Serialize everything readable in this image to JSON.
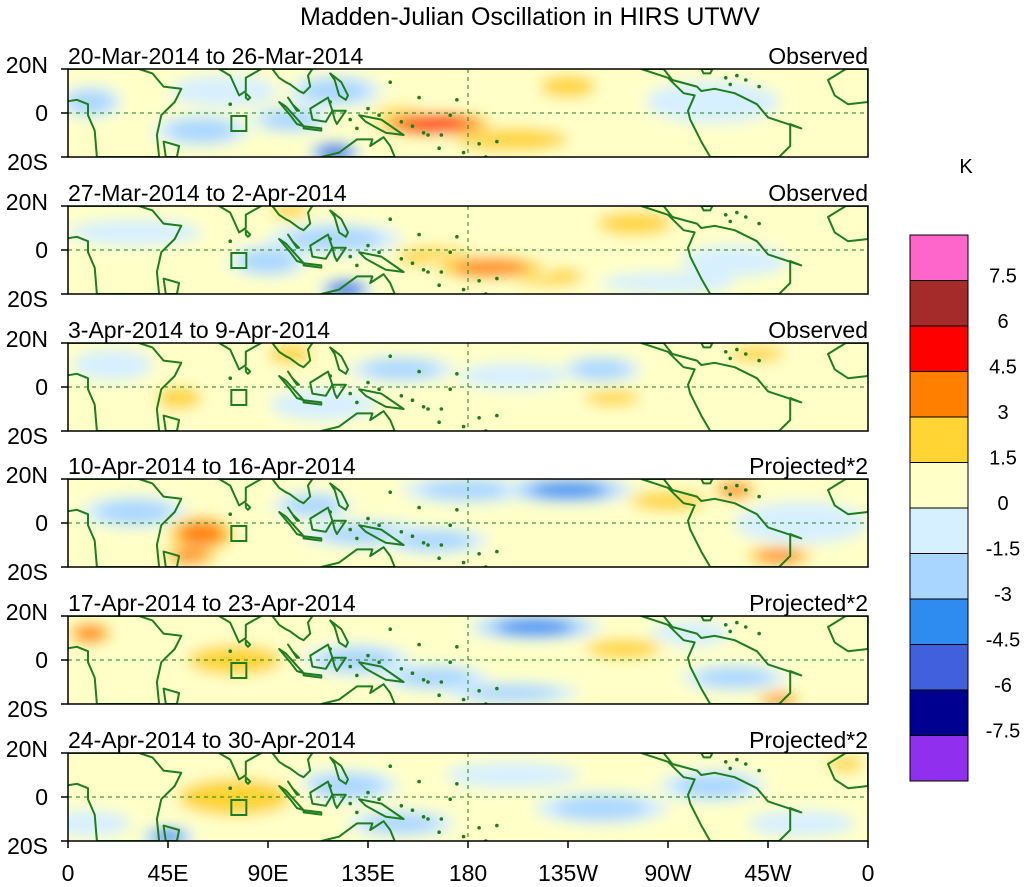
{
  "chart_data": {
    "type": "heatmap",
    "title": "Madden-Julian Oscillation in HIRS UTWV",
    "units": "K",
    "xlim": [
      0,
      360
    ],
    "ylim": [
      -20,
      20
    ],
    "x_ticks": [
      {
        "lon": 0,
        "label": "0"
      },
      {
        "lon": 45,
        "label": "45E"
      },
      {
        "lon": 90,
        "label": "90E"
      },
      {
        "lon": 135,
        "label": "135E"
      },
      {
        "lon": 180,
        "label": "180"
      },
      {
        "lon": 225,
        "label": "135W"
      },
      {
        "lon": 270,
        "label": "90W"
      },
      {
        "lon": 315,
        "label": "45W"
      },
      {
        "lon": 360,
        "label": "0"
      }
    ],
    "y_ticks": [
      {
        "lat": 20,
        "label": "20N"
      },
      {
        "lat": 0,
        "label": "0"
      },
      {
        "lat": -20,
        "label": "20S"
      }
    ],
    "panels": [
      {
        "period": "20-Mar-2014 to 26-Mar-2014",
        "kind": "Observed",
        "anomalies": [
          {
            "lon": 165,
            "lat": -5,
            "sx": 25,
            "sy": 5,
            "v": 5.5
          },
          {
            "lon": 150,
            "lat": -2,
            "sx": 15,
            "sy": 6,
            "v": 3
          },
          {
            "lon": 200,
            "lat": -12,
            "sx": 30,
            "sy": 6,
            "v": 2
          },
          {
            "lon": 225,
            "lat": 12,
            "sx": 15,
            "sy": 6,
            "v": 2
          },
          {
            "lon": 240,
            "lat": 3,
            "sx": 25,
            "sy": 5,
            "v": 1.5
          },
          {
            "lon": 120,
            "lat": 10,
            "sx": 18,
            "sy": 6,
            "v": -3
          },
          {
            "lon": 100,
            "lat": -3,
            "sx": 15,
            "sy": 5,
            "v": -2.5
          },
          {
            "lon": 60,
            "lat": -8,
            "sx": 18,
            "sy": 6,
            "v": -2.5
          },
          {
            "lon": 70,
            "lat": 10,
            "sx": 20,
            "sy": 6,
            "v": -1.5
          },
          {
            "lon": 120,
            "lat": -18,
            "sx": 10,
            "sy": 4,
            "v": -5
          },
          {
            "lon": 290,
            "lat": 5,
            "sx": 25,
            "sy": 8,
            "v": -1.5
          },
          {
            "lon": 330,
            "lat": -10,
            "sx": 25,
            "sy": 6,
            "v": 1.5
          },
          {
            "lon": 10,
            "lat": 5,
            "sx": 12,
            "sy": 6,
            "v": -2
          },
          {
            "lon": 30,
            "lat": -12,
            "sx": 12,
            "sy": 5,
            "v": 1.5
          }
        ]
      },
      {
        "period": "27-Mar-2014 to 2-Apr-2014",
        "kind": "Observed",
        "anomalies": [
          {
            "lon": 190,
            "lat": -8,
            "sx": 25,
            "sy": 5,
            "v": 4.5
          },
          {
            "lon": 165,
            "lat": -3,
            "sx": 20,
            "sy": 5,
            "v": 2
          },
          {
            "lon": 215,
            "lat": -12,
            "sx": 20,
            "sy": 5,
            "v": 2
          },
          {
            "lon": 255,
            "lat": 12,
            "sx": 20,
            "sy": 6,
            "v": 2
          },
          {
            "lon": 120,
            "lat": 5,
            "sx": 25,
            "sy": 6,
            "v": -3
          },
          {
            "lon": 90,
            "lat": -5,
            "sx": 15,
            "sy": 6,
            "v": -2.5
          },
          {
            "lon": 125,
            "lat": -18,
            "sx": 10,
            "sy": 4,
            "v": -5
          },
          {
            "lon": 30,
            "lat": 8,
            "sx": 25,
            "sy": 5,
            "v": -1.5
          },
          {
            "lon": 50,
            "lat": -8,
            "sx": 15,
            "sy": 5,
            "v": 1.5
          },
          {
            "lon": 100,
            "lat": 18,
            "sx": 10,
            "sy": 4,
            "v": 3
          },
          {
            "lon": 300,
            "lat": -5,
            "sx": 20,
            "sy": 6,
            "v": -1.5
          },
          {
            "lon": 340,
            "lat": 5,
            "sx": 15,
            "sy": 6,
            "v": 1.5
          },
          {
            "lon": 270,
            "lat": -15,
            "sx": 25,
            "sy": 4,
            "v": -1.5
          }
        ]
      },
      {
        "period": "3-Apr-2014 to 9-Apr-2014",
        "kind": "Observed",
        "anomalies": [
          {
            "lon": 50,
            "lat": -5,
            "sx": 12,
            "sy": 6,
            "v": 2.5
          },
          {
            "lon": 45,
            "lat": -15,
            "sx": 15,
            "sy": 5,
            "v": 1.5
          },
          {
            "lon": 100,
            "lat": 15,
            "sx": 12,
            "sy": 5,
            "v": 2
          },
          {
            "lon": 150,
            "lat": 8,
            "sx": 20,
            "sy": 5,
            "v": -2
          },
          {
            "lon": 115,
            "lat": -8,
            "sx": 20,
            "sy": 6,
            "v": -1.5
          },
          {
            "lon": 200,
            "lat": 5,
            "sx": 20,
            "sy": 5,
            "v": -1.5
          },
          {
            "lon": 240,
            "lat": 8,
            "sx": 15,
            "sy": 5,
            "v": -2
          },
          {
            "lon": 200,
            "lat": -8,
            "sx": 15,
            "sy": 5,
            "v": 1.5
          },
          {
            "lon": 245,
            "lat": -5,
            "sx": 15,
            "sy": 4,
            "v": 2
          },
          {
            "lon": 275,
            "lat": 13,
            "sx": 15,
            "sy": 4,
            "v": 1.5
          },
          {
            "lon": 20,
            "lat": 10,
            "sx": 15,
            "sy": 6,
            "v": -1.5
          },
          {
            "lon": 330,
            "lat": 0,
            "sx": 25,
            "sy": 8,
            "v": 1
          },
          {
            "lon": 310,
            "lat": 15,
            "sx": 15,
            "sy": 4,
            "v": 2
          }
        ]
      },
      {
        "period": "10-Apr-2014 to 16-Apr-2014",
        "kind": "Projected*2",
        "anomalies": [
          {
            "lon": 60,
            "lat": -5,
            "sx": 15,
            "sy": 8,
            "v": 3.5
          },
          {
            "lon": 55,
            "lat": -15,
            "sx": 12,
            "sy": 4,
            "v": 4
          },
          {
            "lon": 30,
            "lat": 5,
            "sx": 20,
            "sy": 6,
            "v": -2.5
          },
          {
            "lon": 135,
            "lat": -5,
            "sx": 25,
            "sy": 5,
            "v": -3
          },
          {
            "lon": 165,
            "lat": -8,
            "sx": 20,
            "sy": 5,
            "v": -3
          },
          {
            "lon": 180,
            "lat": 15,
            "sx": 25,
            "sy": 5,
            "v": -3
          },
          {
            "lon": 225,
            "lat": 15,
            "sx": 25,
            "sy": 5,
            "v": -3.5
          },
          {
            "lon": 110,
            "lat": 8,
            "sx": 15,
            "sy": 5,
            "v": -2
          },
          {
            "lon": 200,
            "lat": -8,
            "sx": 20,
            "sy": 5,
            "v": 1.5
          },
          {
            "lon": 270,
            "lat": 10,
            "sx": 20,
            "sy": 5,
            "v": 2
          },
          {
            "lon": 300,
            "lat": 15,
            "sx": 10,
            "sy": 4,
            "v": 4
          },
          {
            "lon": 320,
            "lat": -15,
            "sx": 15,
            "sy": 4,
            "v": 3.5
          },
          {
            "lon": 250,
            "lat": -10,
            "sx": 20,
            "sy": 5,
            "v": 1.5
          },
          {
            "lon": 330,
            "lat": 0,
            "sx": 25,
            "sy": 8,
            "v": -1.5
          }
        ]
      },
      {
        "period": "17-Apr-2014 to 23-Apr-2014",
        "kind": "Projected*2",
        "anomalies": [
          {
            "lon": 10,
            "lat": 12,
            "sx": 10,
            "sy": 5,
            "v": 4
          },
          {
            "lon": 25,
            "lat": 0,
            "sx": 15,
            "sy": 6,
            "v": 1.5
          },
          {
            "lon": 75,
            "lat": 0,
            "sx": 25,
            "sy": 8,
            "v": 2.5
          },
          {
            "lon": 130,
            "lat": 0,
            "sx": 20,
            "sy": 6,
            "v": -2.5
          },
          {
            "lon": 165,
            "lat": -8,
            "sx": 20,
            "sy": 5,
            "v": -2.5
          },
          {
            "lon": 210,
            "lat": 15,
            "sx": 25,
            "sy": 5,
            "v": -3.5
          },
          {
            "lon": 200,
            "lat": -15,
            "sx": 25,
            "sy": 4,
            "v": -2.5
          },
          {
            "lon": 250,
            "lat": 5,
            "sx": 20,
            "sy": 5,
            "v": 2
          },
          {
            "lon": 280,
            "lat": 12,
            "sx": 15,
            "sy": 5,
            "v": -1.5
          },
          {
            "lon": 300,
            "lat": -8,
            "sx": 20,
            "sy": 5,
            "v": -2
          },
          {
            "lon": 320,
            "lat": -18,
            "sx": 10,
            "sy": 3,
            "v": 3.5
          },
          {
            "lon": 345,
            "lat": 5,
            "sx": 15,
            "sy": 6,
            "v": 1.5
          },
          {
            "lon": 100,
            "lat": 15,
            "sx": 15,
            "sy": 4,
            "v": 1.5
          }
        ]
      },
      {
        "period": "24-Apr-2014 to 30-Apr-2014",
        "kind": "Projected*2",
        "anomalies": [
          {
            "lon": 75,
            "lat": 0,
            "sx": 30,
            "sy": 10,
            "v": 2.5
          },
          {
            "lon": 30,
            "lat": 5,
            "sx": 20,
            "sy": 6,
            "v": 1.5
          },
          {
            "lon": 45,
            "lat": -18,
            "sx": 10,
            "sy": 4,
            "v": -4
          },
          {
            "lon": 125,
            "lat": 5,
            "sx": 20,
            "sy": 6,
            "v": -2
          },
          {
            "lon": 150,
            "lat": -12,
            "sx": 20,
            "sy": 5,
            "v": -2
          },
          {
            "lon": 200,
            "lat": 10,
            "sx": 25,
            "sy": 5,
            "v": -1.5
          },
          {
            "lon": 240,
            "lat": -5,
            "sx": 25,
            "sy": 6,
            "v": -2
          },
          {
            "lon": 290,
            "lat": 5,
            "sx": 20,
            "sy": 6,
            "v": -2
          },
          {
            "lon": 270,
            "lat": 15,
            "sx": 15,
            "sy": 4,
            "v": 1.5
          },
          {
            "lon": 330,
            "lat": -12,
            "sx": 20,
            "sy": 5,
            "v": -1.5
          },
          {
            "lon": 10,
            "lat": -12,
            "sx": 15,
            "sy": 5,
            "v": -1.5
          },
          {
            "lon": 350,
            "lat": 15,
            "sx": 10,
            "sy": 4,
            "v": 2
          }
        ]
      }
    ],
    "colorbar": {
      "label": "K",
      "levels": [
        {
          "label": "7.5",
          "value": 7.5
        },
        {
          "label": "6",
          "value": 6
        },
        {
          "label": "4.5",
          "value": 4.5
        },
        {
          "label": "3",
          "value": 3
        },
        {
          "label": "1.5",
          "value": 1.5
        },
        {
          "label": "0",
          "value": 0
        },
        {
          "label": "-1.5",
          "value": -1.5
        },
        {
          "label": "-3",
          "value": -3
        },
        {
          "label": "-4.5",
          "value": -4.5
        },
        {
          "label": "-6",
          "value": -6
        },
        {
          "label": "-7.5",
          "value": -7.5
        }
      ],
      "colors": [
        "#ff66cc",
        "#a52a2a",
        "#ff0000",
        "#ff7f00",
        "#ffd433",
        "#ffffc8",
        "#d7f0ff",
        "#a9d6ff",
        "#2e8cf0",
        "#4060dd",
        "#000090",
        "#9030ee"
      ]
    }
  },
  "colors": {
    "coast": "#1e7d1e",
    "frame": "#000000",
    "dash": "#1e7d1e"
  }
}
